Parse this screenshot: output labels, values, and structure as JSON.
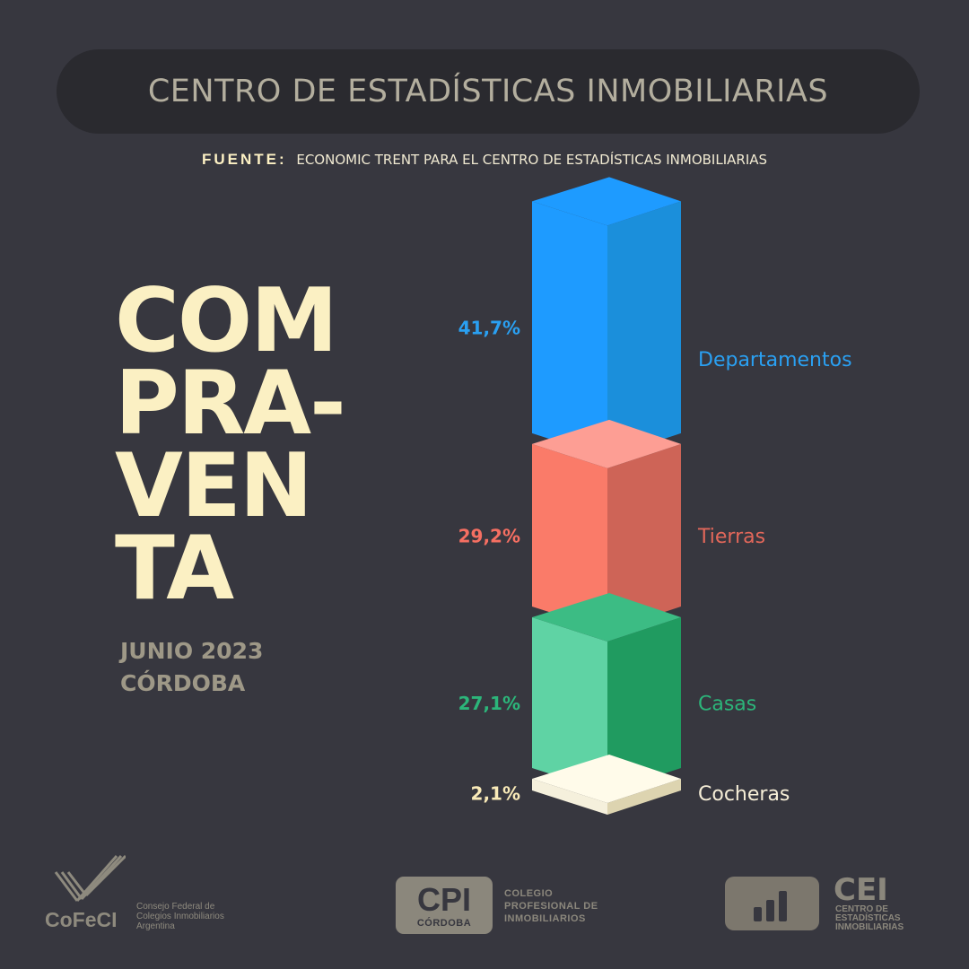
{
  "header": {
    "title": "CENTRO DE ESTADÍSTICAS INMOBILIARIAS"
  },
  "source": {
    "label": "FUENTE:",
    "text": "ECONOMIC TRENT PARA EL CENTRO DE ESTADÍSTICAS INMOBILIARIAS"
  },
  "title": {
    "lines": [
      "COM",
      "PRA-",
      "VEN",
      "TA"
    ]
  },
  "subtitle": {
    "date": "JUNIO 2023",
    "place": "CÓRDOBA"
  },
  "chart_data": {
    "type": "bar",
    "stacked": true,
    "categories": [
      "Departamentos",
      "Tierras",
      "Casas",
      "Cocheras"
    ],
    "values": [
      41.7,
      29.2,
      27.1,
      2.1
    ],
    "value_labels": [
      "41,7%",
      "29,2%",
      "27,1%",
      "2,1%"
    ],
    "colors": [
      "#1e9bff",
      "#fa7b69",
      "#5fd3a4",
      "#f5f0dc"
    ],
    "side_colors": [
      "#1b8fdb",
      "#ce6457",
      "#209b60",
      "#ddd4b0"
    ],
    "top_colors": [
      "#1e9bff",
      "#fd9e94",
      "#3cbc84",
      "#fffbea"
    ],
    "label_colors": [
      "#2aa0f2",
      "#f66f62",
      "#2cb57a",
      "#f9eab8"
    ],
    "cat_label_colors": [
      "#2aa0f2",
      "#e2675a",
      "#2cb57a",
      "#f6eed7"
    ],
    "title": "",
    "xlabel": "",
    "ylabel": "",
    "legend": "none"
  },
  "footer": {
    "cofeci": {
      "name": "CoFeCI",
      "desc": [
        "Consejo Federal de",
        "Colegios Inmobiliarios",
        "Argentina"
      ],
      "icon": "cofeci-check-icon"
    },
    "cpi": {
      "big": "CPI",
      "small": "CÓRDOBA",
      "desc": [
        "COLEGIO",
        "PROFESIONAL DE",
        "INMOBILIARIOS"
      ]
    },
    "cei": {
      "word": "CEI",
      "desc": [
        "CENTRO DE",
        "ESTADÍSTICAS",
        "INMOBILIARIAS"
      ],
      "icon": "bar-chart-icon"
    }
  }
}
